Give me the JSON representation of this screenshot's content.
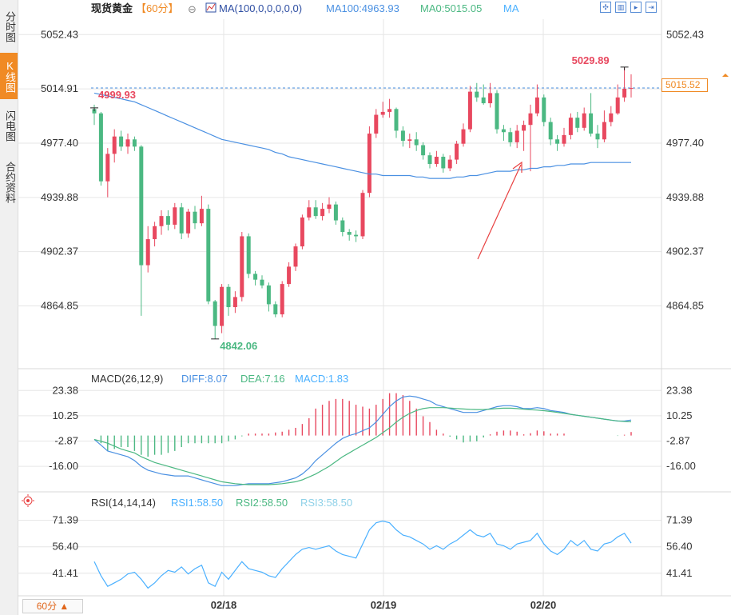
{
  "sidebar": {
    "tabs": [
      {
        "label": "分时图",
        "active": false
      },
      {
        "label": "K线图",
        "active": true
      },
      {
        "label": "闪电图",
        "active": false
      },
      {
        "label": "合约资料",
        "active": false
      }
    ]
  },
  "header": {
    "symbol": "现货黄金",
    "period_tag": "【60分】",
    "circle_icon": "⊖",
    "ma_params": "MA(100,0,0,0,0,0)",
    "ma100": "MA100:4963.93",
    "ma0": "MA0:5015.05",
    "ma_tail": "MA"
  },
  "toolbar": {
    "icons": [
      "crosshair-icon",
      "layout-icon",
      "chart-icon",
      "forward-icon"
    ]
  },
  "period_button": "60分 ▲",
  "current_price_label": "5015.52",
  "colors": {
    "up": "#e8485f",
    "down": "#4bb882",
    "ma_line": "#4a90e2",
    "grid": "#e6e6e6",
    "accent": "#f08a24",
    "diff": "#4a90e2",
    "dea": "#4bb882",
    "rsi1": "#4ab0ff",
    "rsi2": "#4bb882",
    "rsi3": "#8fd1e8",
    "annotation_arrow": "#e84040"
  },
  "chart_data": [
    {
      "type": "candlestick",
      "price_ticks": [
        "5052.43",
        "5014.91",
        "4977.40",
        "4939.88",
        "4902.37",
        "4864.85"
      ],
      "x_labels": [
        "02/18",
        "02/19",
        "02/20"
      ],
      "ylim": [
        4822,
        5062
      ],
      "annotations": {
        "high": "5029.89",
        "low": "4842.06",
        "first": "4999.93"
      },
      "reference_price": 5015.52,
      "candles": [
        [
          5001,
          4998,
          5004,
          4990
        ],
        [
          4998,
          4951,
          4999,
          4948
        ],
        [
          4951,
          4970,
          4974,
          4940
        ],
        [
          4970,
          4982,
          4987,
          4964
        ],
        [
          4982,
          4975,
          4986,
          4972
        ],
        [
          4975,
          4980,
          4984,
          4970
        ],
        [
          4980,
          4975,
          4982,
          4972
        ],
        [
          4975,
          4893,
          4976,
          4858
        ],
        [
          4893,
          4911,
          4920,
          4888
        ],
        [
          4911,
          4920,
          4923,
          4906
        ],
        [
          4920,
          4927,
          4931,
          4914
        ],
        [
          4927,
          4921,
          4931,
          4917
        ],
        [
          4921,
          4933,
          4936,
          4918
        ],
        [
          4933,
          4915,
          4936,
          4911
        ],
        [
          4915,
          4930,
          4932,
          4912
        ],
        [
          4930,
          4922,
          4934,
          4918
        ],
        [
          4922,
          4932,
          4941,
          4920
        ],
        [
          4932,
          4868,
          4935,
          4866
        ],
        [
          4868,
          4851,
          4869,
          4842
        ],
        [
          4851,
          4878,
          4880,
          4846
        ],
        [
          4878,
          4864,
          4880,
          4858
        ],
        [
          4864,
          4871,
          4875,
          4860
        ],
        [
          4871,
          4913,
          4916,
          4868
        ],
        [
          4913,
          4887,
          4915,
          4884
        ],
        [
          4887,
          4883,
          4889,
          4879
        ],
        [
          4883,
          4879,
          4886,
          4877
        ],
        [
          4879,
          4866,
          4881,
          4861
        ],
        [
          4866,
          4859,
          4868,
          4857
        ],
        [
          4859,
          4880,
          4882,
          4857
        ],
        [
          4880,
          4892,
          4895,
          4878
        ],
        [
          4892,
          4906,
          4908,
          4889
        ],
        [
          4906,
          4926,
          4928,
          4904
        ],
        [
          4926,
          4933,
          4938,
          4924
        ],
        [
          4933,
          4927,
          4938,
          4925
        ],
        [
          4927,
          4932,
          4936,
          4924
        ],
        [
          4932,
          4935,
          4940,
          4929
        ],
        [
          4935,
          4924,
          4937,
          4921
        ],
        [
          4924,
          4916,
          4926,
          4913
        ],
        [
          4916,
          4914,
          4918,
          4910
        ],
        [
          4914,
          4913,
          4917,
          4909
        ],
        [
          4913,
          4943,
          4945,
          4911
        ],
        [
          4943,
          4984,
          4989,
          4940
        ],
        [
          4984,
          4997,
          5001,
          4981
        ],
        [
          4997,
          4999,
          5006,
          4995
        ],
        [
          4999,
          5001,
          5008,
          4995
        ],
        [
          5001,
          4986,
          5002,
          4981
        ],
        [
          4986,
          4979,
          4989,
          4975
        ],
        [
          4979,
          4980,
          4984,
          4974
        ],
        [
          4980,
          4976,
          4985,
          4972
        ],
        [
          4976,
          4969,
          4978,
          4966
        ],
        [
          4969,
          4963,
          4971,
          4960
        ],
        [
          4963,
          4968,
          4972,
          4961
        ],
        [
          4968,
          4960,
          4970,
          4957
        ],
        [
          4960,
          4966,
          4969,
          4958
        ],
        [
          4966,
          4977,
          4979,
          4963
        ],
        [
          4977,
          4987,
          4991,
          4975
        ],
        [
          4987,
          5013,
          5017,
          4985
        ],
        [
          5013,
          5009,
          5019,
          5006
        ],
        [
          5009,
          5005,
          5018,
          5004
        ],
        [
          5005,
          5012,
          5019,
          5002
        ],
        [
          5012,
          4987,
          5014,
          4984
        ],
        [
          4987,
          4985,
          4990,
          4979
        ],
        [
          4985,
          4978,
          4988,
          4975
        ],
        [
          4978,
          4986,
          4990,
          4974
        ],
        [
          4986,
          4990,
          4993,
          4972
        ],
        [
          4990,
          4998,
          5004,
          4958
        ],
        [
          4998,
          5009,
          5018,
          4996
        ],
        [
          5009,
          4992,
          5011,
          4989
        ],
        [
          4992,
          4980,
          4995,
          4976
        ],
        [
          4980,
          4977,
          4983,
          4972
        ],
        [
          4977,
          4983,
          4988,
          4975
        ],
        [
          4983,
          4995,
          4998,
          4980
        ],
        [
          4995,
          4988,
          4999,
          4985
        ],
        [
          4988,
          4998,
          5002,
          4986
        ],
        [
          4998,
          4984,
          5012,
          4982
        ],
        [
          4984,
          4980,
          4990,
          4974
        ],
        [
          4980,
          4992,
          5000,
          4978
        ],
        [
          4992,
          4998,
          5003,
          4989
        ],
        [
          4998,
          5009,
          5018,
          4997
        ],
        [
          5009,
          5015,
          5030,
          5006
        ],
        [
          5015,
          5015.5,
          5025,
          5009
        ]
      ],
      "ma100": [
        5012,
        5011,
        5010,
        5009,
        5008,
        5007,
        5006,
        5004,
        5002,
        5000,
        4998,
        4996,
        4994,
        4992,
        4990,
        4988,
        4986,
        4984,
        4982,
        4980,
        4979,
        4978,
        4977,
        4976,
        4975,
        4974,
        4973,
        4971,
        4970,
        4968,
        4967,
        4966,
        4965,
        4964,
        4963,
        4962,
        4961,
        4960,
        4959,
        4958,
        4957,
        4956,
        4956,
        4955,
        4955,
        4955,
        4955,
        4955,
        4954,
        4954,
        4953,
        4953,
        4953,
        4953,
        4954,
        4954,
        4955,
        4955,
        4956,
        4957,
        4958,
        4958,
        4958,
        4959,
        4959,
        4960,
        4960,
        4961,
        4961,
        4962,
        4962,
        4963,
        4963,
        4963,
        4964,
        4964,
        4964,
        4964,
        4964,
        4964,
        4964
      ]
    },
    {
      "type": "macd",
      "params": "MACD(26,12,9)",
      "diff_label": "DIFF:8.07",
      "dea_label": "DEA:7.16",
      "macd_label": "MACD:1.83",
      "y_ticks": [
        "23.38",
        "10.25",
        "-2.87",
        "-16.00"
      ],
      "ylim": [
        -28,
        26
      ],
      "diff": [
        -2,
        -5,
        -8,
        -9,
        -10,
        -11,
        -13,
        -16,
        -18,
        -19,
        -20,
        -20.5,
        -21,
        -21,
        -21,
        -22,
        -23,
        -24,
        -25,
        -26,
        -26,
        -26,
        -25.5,
        -25,
        -25,
        -25,
        -25,
        -24.5,
        -24,
        -23,
        -22,
        -20,
        -17,
        -13,
        -10,
        -7,
        -4,
        -1.5,
        0,
        1,
        2.5,
        4,
        7,
        11,
        15,
        18,
        20,
        20.5,
        20,
        19,
        18,
        16,
        15,
        14,
        13,
        12,
        12,
        12,
        13,
        14,
        15,
        15.5,
        15.5,
        15,
        14,
        14,
        14.5,
        14,
        13,
        12.5,
        12,
        11,
        10.5,
        10,
        9.5,
        9,
        8.5,
        8,
        7.5,
        7.5,
        8.07
      ],
      "dea": [
        -2,
        -3,
        -4,
        -5.5,
        -7,
        -8,
        -9,
        -11,
        -12.5,
        -14,
        -15,
        -16,
        -17,
        -18,
        -19,
        -20,
        -21,
        -22,
        -23,
        -24,
        -24.5,
        -25,
        -25.3,
        -25.5,
        -25.5,
        -25.5,
        -25.5,
        -25.3,
        -25,
        -24.5,
        -24,
        -23,
        -21.5,
        -20,
        -18,
        -16,
        -13.5,
        -11,
        -9,
        -7,
        -5,
        -3,
        -1,
        1.5,
        4,
        7,
        9.5,
        11.5,
        13,
        14,
        14.5,
        14.5,
        14.5,
        14.3,
        14,
        13.8,
        13.6,
        13.5,
        13.5,
        13.7,
        14,
        14.2,
        14.2,
        14,
        13.7,
        13.4,
        13.2,
        12.9,
        12.5,
        12,
        11.5,
        11,
        10.5,
        10,
        9.5,
        9,
        8.5,
        8,
        7.6,
        7.3,
        7.16
      ]
    },
    {
      "type": "rsi",
      "params": "RSI(14,14,14)",
      "rsi1_label": "RSI1:58.50",
      "rsi2_label": "RSI2:58.50",
      "rsi3_label": "RSI3:58.50",
      "y_ticks": [
        "71.39",
        "56.40",
        "41.41"
      ],
      "ylim": [
        30,
        78
      ],
      "rsi": [
        48,
        40,
        34,
        36,
        38,
        41,
        42,
        38,
        33,
        36,
        40,
        43,
        42,
        45,
        41,
        44,
        46,
        36,
        34,
        42,
        38,
        43,
        48,
        44,
        43,
        42,
        40,
        39,
        44,
        48,
        52,
        55,
        56,
        55,
        56,
        57,
        54,
        52,
        51,
        50,
        58,
        66,
        70,
        71,
        70,
        66,
        63,
        62,
        60,
        58,
        55,
        57,
        55,
        58,
        60,
        63,
        66,
        63,
        62,
        64,
        58,
        57,
        55,
        58,
        59,
        60,
        64,
        58,
        54,
        52,
        55,
        60,
        57,
        60,
        55,
        54,
        58,
        59,
        62,
        64,
        58.5
      ]
    }
  ]
}
